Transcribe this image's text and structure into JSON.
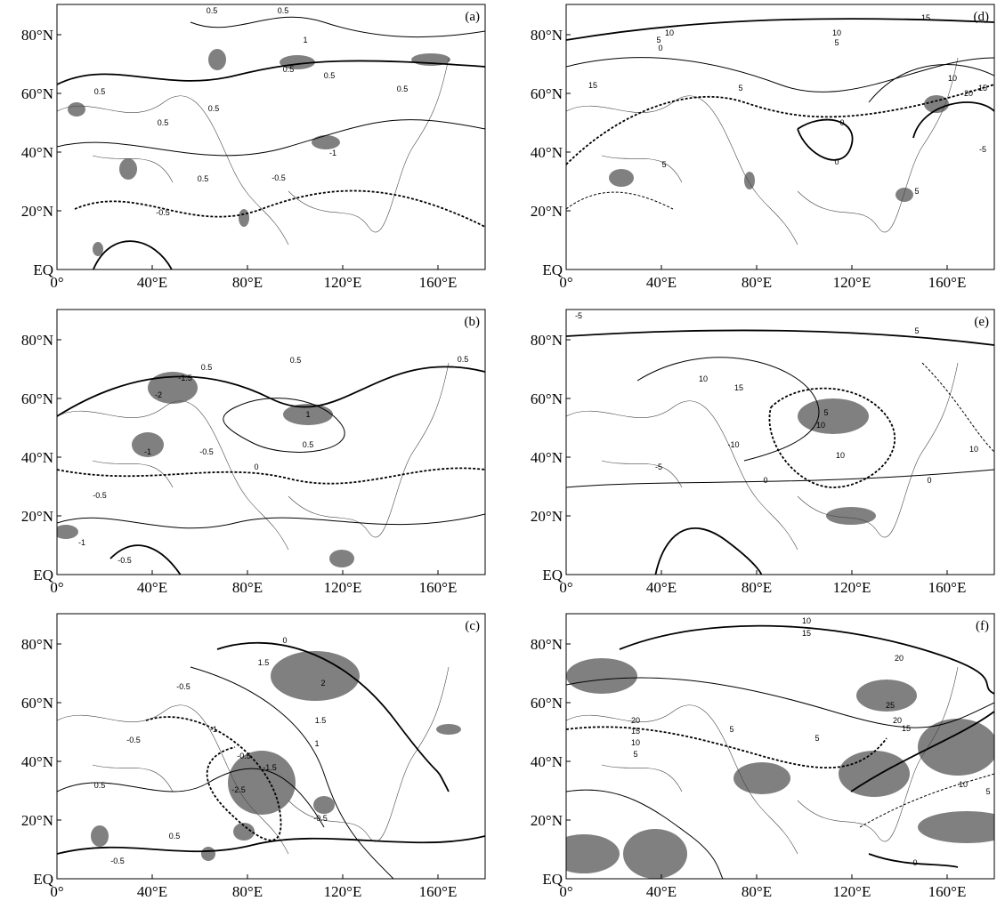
{
  "axes": {
    "x_ticks": [
      "0°",
      "40°E",
      "80°E",
      "120°E",
      "160°E"
    ],
    "y_ticks": [
      "EQ",
      "20°N",
      "40°N",
      "60°N",
      "80°N"
    ]
  },
  "panels": [
    {
      "label": "(a)",
      "contour_labels": [
        "0.5",
        "0.5",
        "1",
        "0.5",
        "0.5",
        "0.5",
        "0.5",
        "0.5",
        "-1",
        "0.5",
        "-0.5",
        "-0.5",
        "0.5"
      ]
    },
    {
      "label": "(b)",
      "contour_labels": [
        "0.5",
        "-1.5",
        "-2",
        "0.5",
        "1",
        "0.5",
        "-1",
        "-0.5",
        "0",
        "-0.5",
        "0.5",
        "-1",
        "-0.5"
      ]
    },
    {
      "label": "(c)",
      "contour_labels": [
        "0",
        "1.5",
        "2",
        "1.5",
        "1",
        "-0.5",
        "-1",
        "-0.5",
        "-1.5",
        "-2.5",
        "-0.5",
        "0.5",
        "-0.5",
        "0.5",
        "-0.5"
      ]
    },
    {
      "label": "(d)",
      "contour_labels": [
        "15",
        "10",
        "10",
        "5",
        "5",
        "0",
        "5",
        "15",
        "10",
        "20",
        "15",
        "0",
        "0",
        "5",
        "5",
        "-5"
      ]
    },
    {
      "label": "(e)",
      "contour_labels": [
        "-5",
        "5",
        "10",
        "15",
        "5",
        "10",
        "-10",
        "-5",
        "10",
        "10",
        "0",
        "0"
      ]
    },
    {
      "label": "(f)",
      "contour_labels": [
        "10",
        "15",
        "20",
        "25",
        "20",
        "15",
        "10",
        "5",
        "20",
        "15",
        "10",
        "5",
        "5",
        "5",
        "0"
      ]
    }
  ]
}
